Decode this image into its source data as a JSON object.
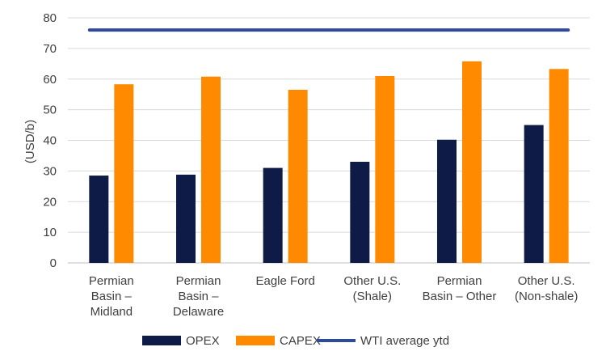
{
  "chart_data": {
    "type": "bar",
    "categories": [
      [
        "Permian",
        "Basin –",
        "Midland"
      ],
      [
        "Permian",
        "Basin –",
        "Delaware"
      ],
      [
        "Eagle Ford"
      ],
      [
        "Other U.S.",
        "(Shale)"
      ],
      [
        "Permian",
        "Basin – Other"
      ],
      [
        "Other U.S.",
        "(Non-shale)"
      ]
    ],
    "series": [
      {
        "name": "OPEX",
        "type": "bar",
        "color": "#0e1b47",
        "values": [
          28.5,
          28.8,
          31.0,
          33.0,
          40.2,
          45.0
        ]
      },
      {
        "name": "CAPEX",
        "type": "bar",
        "color": "#ff8a00",
        "values": [
          58.3,
          60.8,
          56.5,
          61.0,
          65.8,
          63.3
        ]
      },
      {
        "name": "WTI average ytd",
        "type": "line",
        "color": "#2e4a9e",
        "value": 76
      }
    ],
    "ylabel": "(USD/b)",
    "ylim": [
      0,
      80
    ],
    "yticks": [
      0,
      10,
      20,
      30,
      40,
      50,
      60,
      70,
      80
    ],
    "grid": true,
    "legend": "bottom"
  }
}
